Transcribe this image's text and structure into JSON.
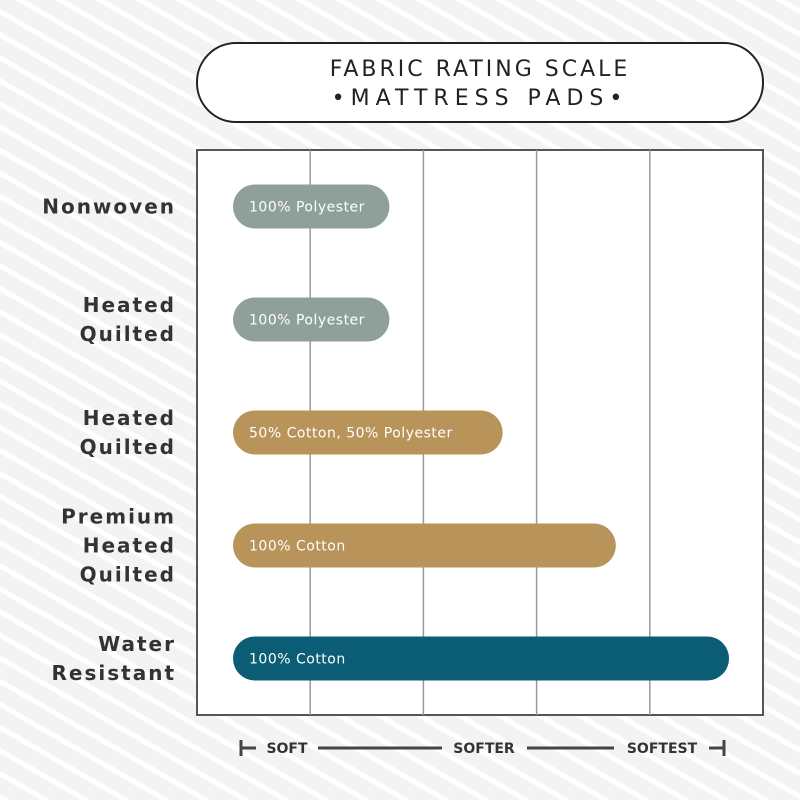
{
  "chart_data": {
    "type": "bar",
    "orientation": "horizontal",
    "title": "FABRIC RATING SCALE",
    "subtitle": "•MATTRESS PADS•",
    "categories": [
      "Nonwoven",
      "Heated\nQuilted",
      "Heated\nQuilted",
      "Premium\nHeated\nQuilted",
      "Water\nResistant"
    ],
    "values": [
      1.7,
      1.7,
      2.7,
      3.7,
      4.7
    ],
    "bar_labels": [
      "100% Polyester",
      "100% Polyester",
      "50% Cotton, 50% Polyester",
      "100% Cotton",
      "100% Cotton"
    ],
    "colors": [
      "#8f9f99",
      "#8f9f99",
      "#b8935a",
      "#b8935a",
      "#0b5d75"
    ],
    "xlim": [
      0,
      5
    ],
    "xticks": [
      1,
      2,
      3,
      4
    ],
    "grid": true,
    "scale_labels": [
      "SOFT",
      "SOFTER",
      "SOFTEST"
    ]
  }
}
